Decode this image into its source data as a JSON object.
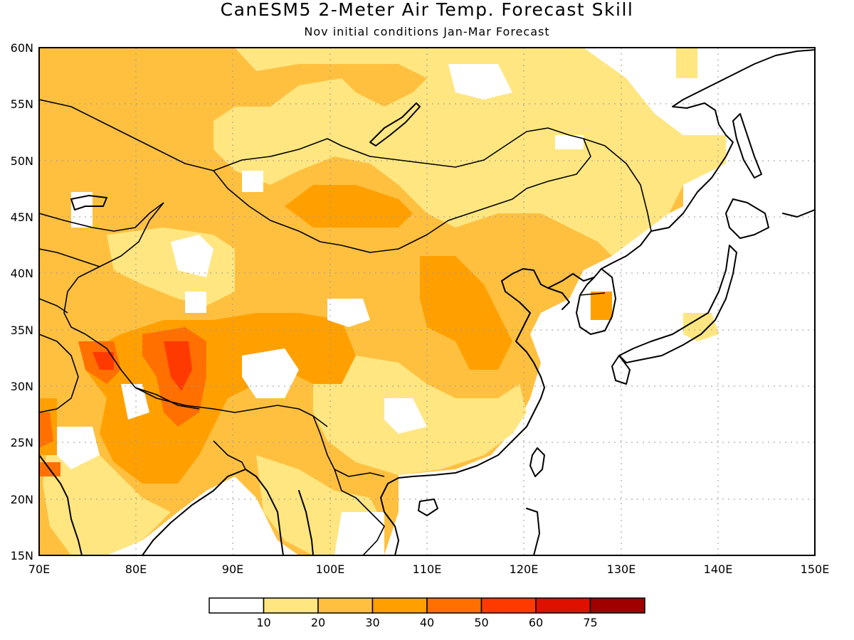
{
  "figure": {
    "title": "CanESM5 2-Meter Air Temp. Forecast Skill",
    "subtitle": "Nov initial conditions  Jan-Mar Forecast"
  },
  "axes": {
    "lon_ticks": [
      "70E",
      "80E",
      "90E",
      "100E",
      "110E",
      "120E",
      "130E",
      "140E",
      "150E"
    ],
    "lat_ticks": [
      "60N",
      "55N",
      "50N",
      "45N",
      "40N",
      "35N",
      "30N",
      "25N",
      "20N",
      "15N"
    ],
    "lon_range": [
      70,
      150
    ],
    "lat_range": [
      15,
      60
    ],
    "grid": "dotted"
  },
  "colorbar": {
    "labels": [
      "10",
      "20",
      "30",
      "40",
      "50",
      "60",
      "75"
    ],
    "colors": [
      "#ffffff",
      "#ffe680",
      "#ffc040",
      "#ffa000",
      "#ff7000",
      "#ff3a00",
      "#e01000",
      "#a00000"
    ]
  },
  "colors": {
    "land_base": "#ffc040",
    "ocean": "#ffffff"
  }
}
